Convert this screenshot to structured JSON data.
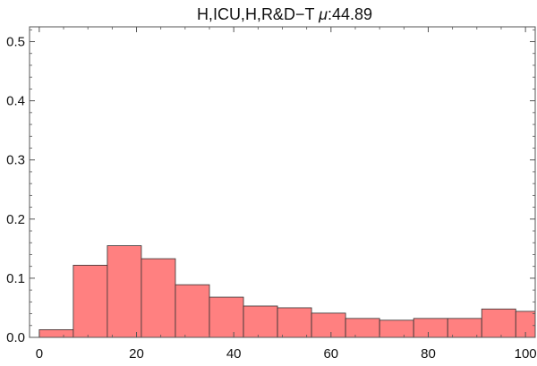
{
  "chart_data": {
    "type": "bar",
    "title_prefix": "H,ICU,H,R&D−T ",
    "title_mu": "μ",
    "title_value": ":44.89",
    "bin_edges": [
      0,
      7,
      14,
      21,
      28,
      35,
      42,
      49,
      56,
      63,
      70,
      77,
      84,
      91,
      98,
      105
    ],
    "values": [
      0.013,
      0.122,
      0.155,
      0.133,
      0.089,
      0.068,
      0.053,
      0.05,
      0.041,
      0.032,
      0.029,
      0.032,
      0.032,
      0.048,
      0.044
    ],
    "xlim": [
      -2,
      102
    ],
    "ylim": [
      0,
      0.525
    ],
    "xticks": [
      0,
      20,
      40,
      60,
      80,
      100
    ],
    "xtick_labels": [
      "0",
      "20",
      "40",
      "60",
      "80",
      "100"
    ],
    "yticks": [
      0,
      0.1,
      0.2,
      0.3,
      0.4,
      0.5
    ],
    "ytick_labels": [
      "0.0",
      "0.1",
      "0.2",
      "0.3",
      "0.4",
      "0.5"
    ],
    "bar_color": "#ff8080",
    "edge_color": "#333333"
  }
}
